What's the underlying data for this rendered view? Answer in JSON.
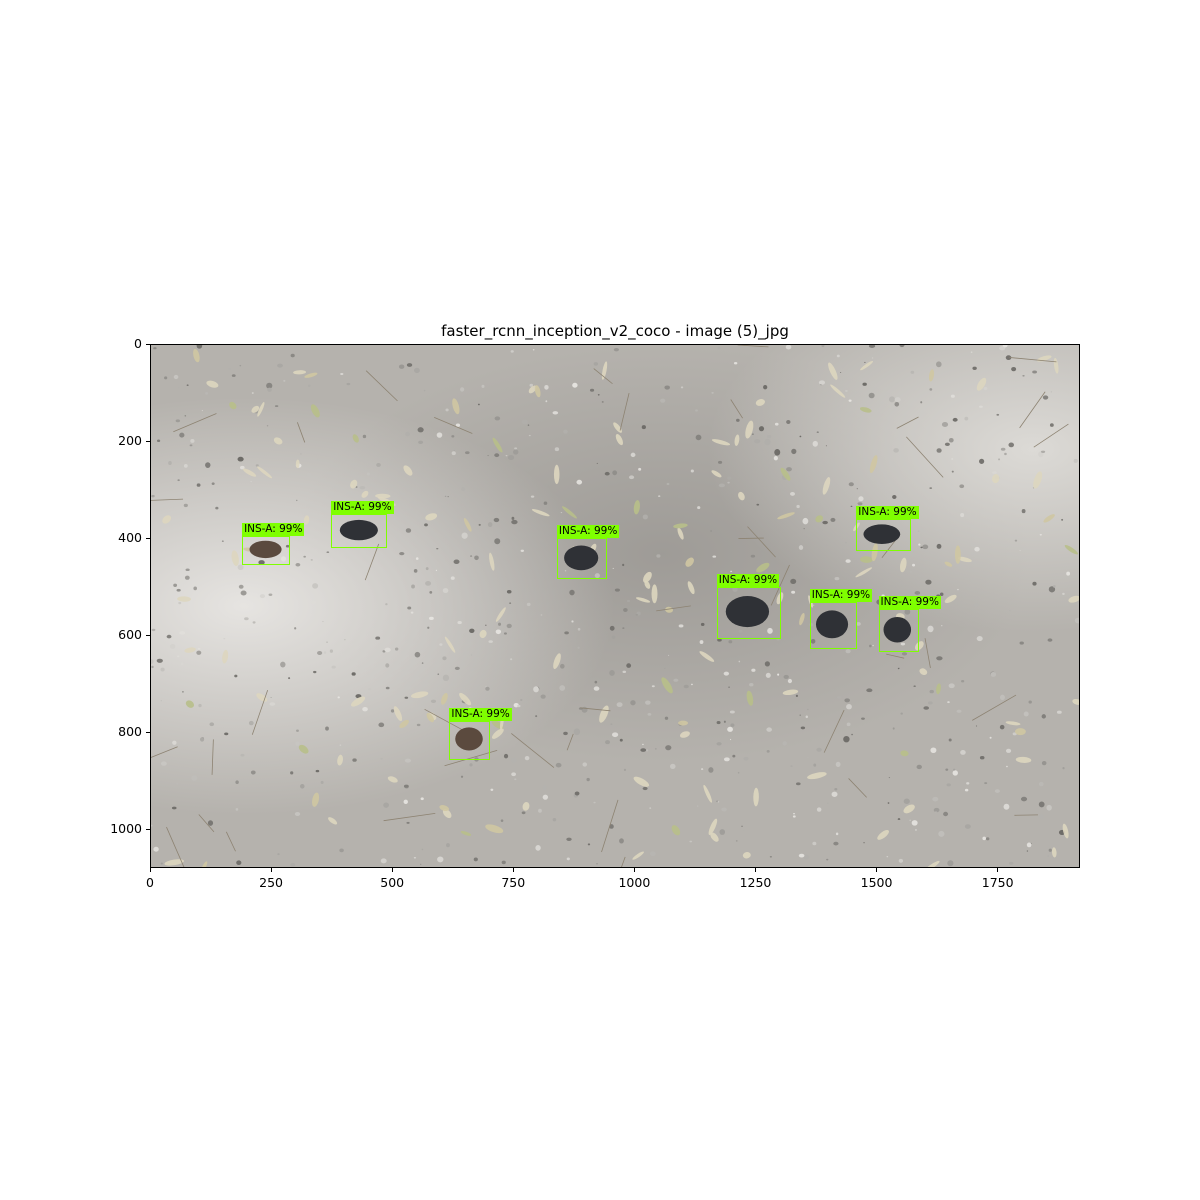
{
  "figure": {
    "title": "faster_rcnn_inception_v2_coco - image (5)_jpg"
  },
  "image": {
    "width": 1920,
    "height": 1080,
    "description_colors": {
      "ground": "#b9b6b1",
      "box": "#7fff00",
      "label_bg": "#7fff00"
    }
  },
  "axes": {
    "x_ticks": [
      0,
      250,
      500,
      750,
      1000,
      1250,
      1500,
      1750
    ],
    "y_ticks": [
      0,
      200,
      400,
      600,
      800,
      1000
    ]
  },
  "detections": [
    {
      "label": "INS-A: 99%",
      "x0": 188,
      "y0": 393,
      "x1": 286,
      "y1": 453
    },
    {
      "label": "INS-A: 99%",
      "x0": 372,
      "y0": 348,
      "x1": 488,
      "y1": 418
    },
    {
      "label": "INS-A: 99%",
      "x0": 838,
      "y0": 398,
      "x1": 942,
      "y1": 483
    },
    {
      "label": "INS-A: 99%",
      "x0": 1168,
      "y0": 498,
      "x1": 1300,
      "y1": 605
    },
    {
      "label": "INS-A: 99%",
      "x0": 1456,
      "y0": 358,
      "x1": 1568,
      "y1": 425
    },
    {
      "label": "INS-A: 99%",
      "x0": 1360,
      "y0": 530,
      "x1": 1458,
      "y1": 626
    },
    {
      "label": "INS-A: 99%",
      "x0": 1502,
      "y0": 545,
      "x1": 1586,
      "y1": 633
    },
    {
      "label": "INS-A: 99%",
      "x0": 616,
      "y0": 775,
      "x1": 700,
      "y1": 855
    }
  ]
}
